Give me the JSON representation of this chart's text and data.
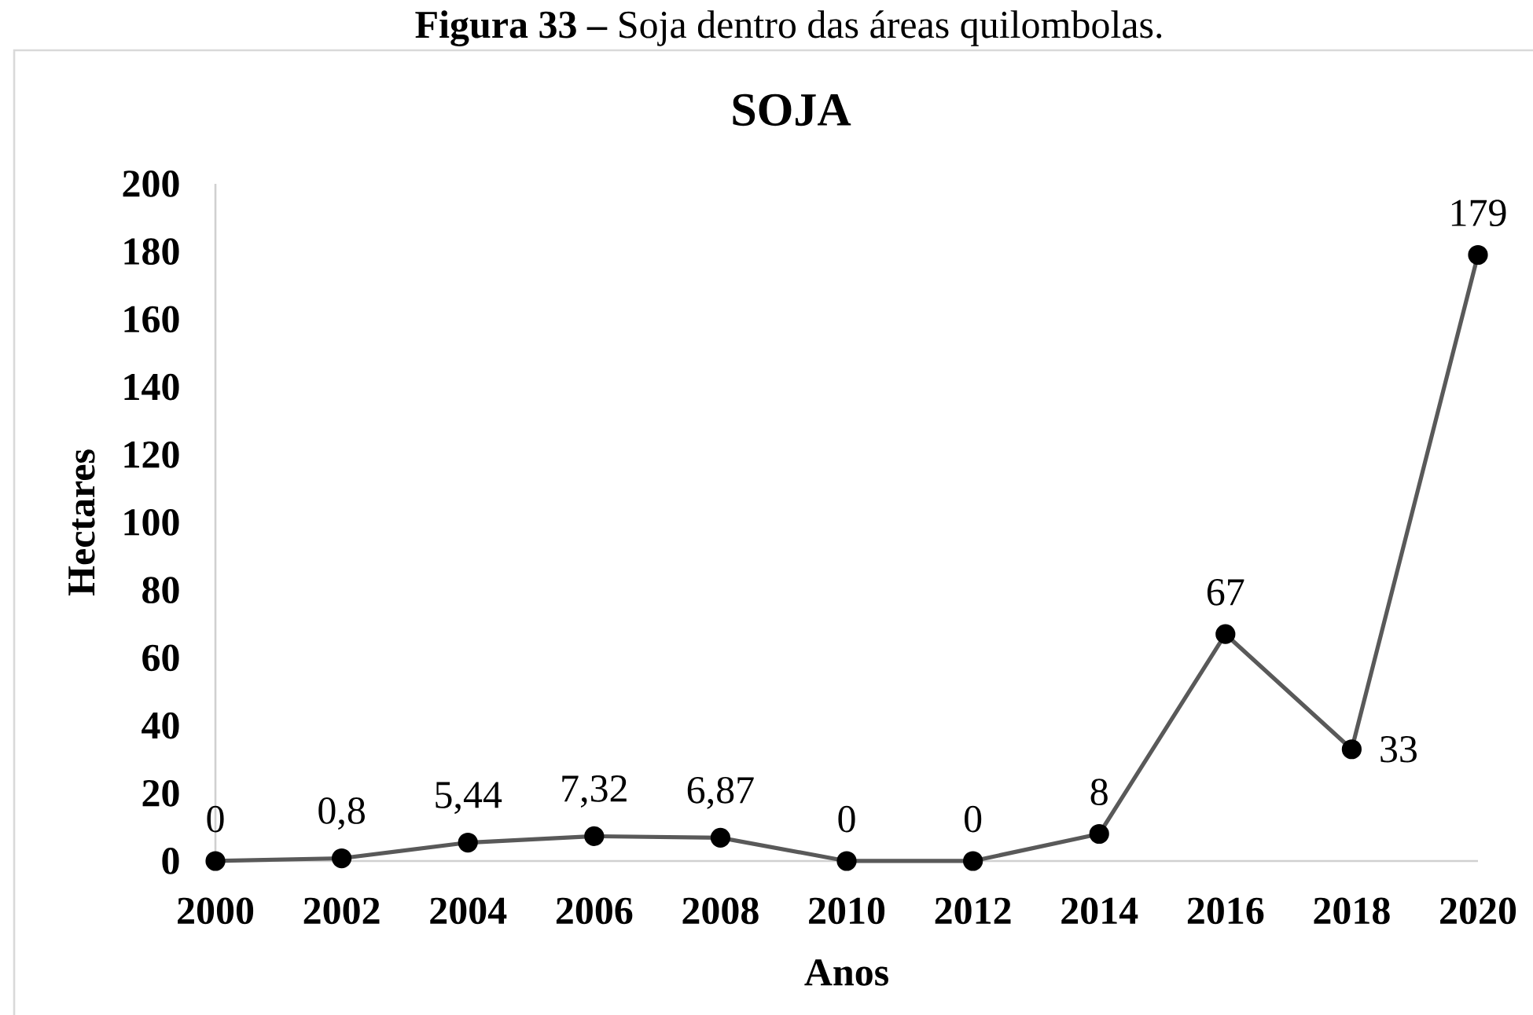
{
  "chart_data": {
    "type": "line",
    "title": "SOJA",
    "xlabel": "Anos",
    "ylabel": "Hectares",
    "annotations": [
      "**Figura 33 –** Soja dentro das áreas quilombolas."
    ],
    "categories": [
      "2000",
      "2002",
      "2004",
      "2006",
      "2008",
      "2010",
      "2012",
      "2014",
      "2016",
      "2018",
      "2020"
    ],
    "values": [
      0,
      0.8,
      5.44,
      7.32,
      6.87,
      0,
      0,
      8,
      67,
      33,
      179
    ],
    "value_labels": [
      "0",
      "0,8",
      "5,44",
      "7,32",
      "6,87",
      "0",
      "0",
      "8",
      "67",
      "33",
      "179"
    ],
    "color": "#595959",
    "ylim": [
      0,
      200
    ],
    "yticks": [
      0,
      20,
      40,
      60,
      80,
      100,
      120,
      140,
      160,
      180,
      200
    ],
    "marker": "circle",
    "line_style": "solid"
  }
}
